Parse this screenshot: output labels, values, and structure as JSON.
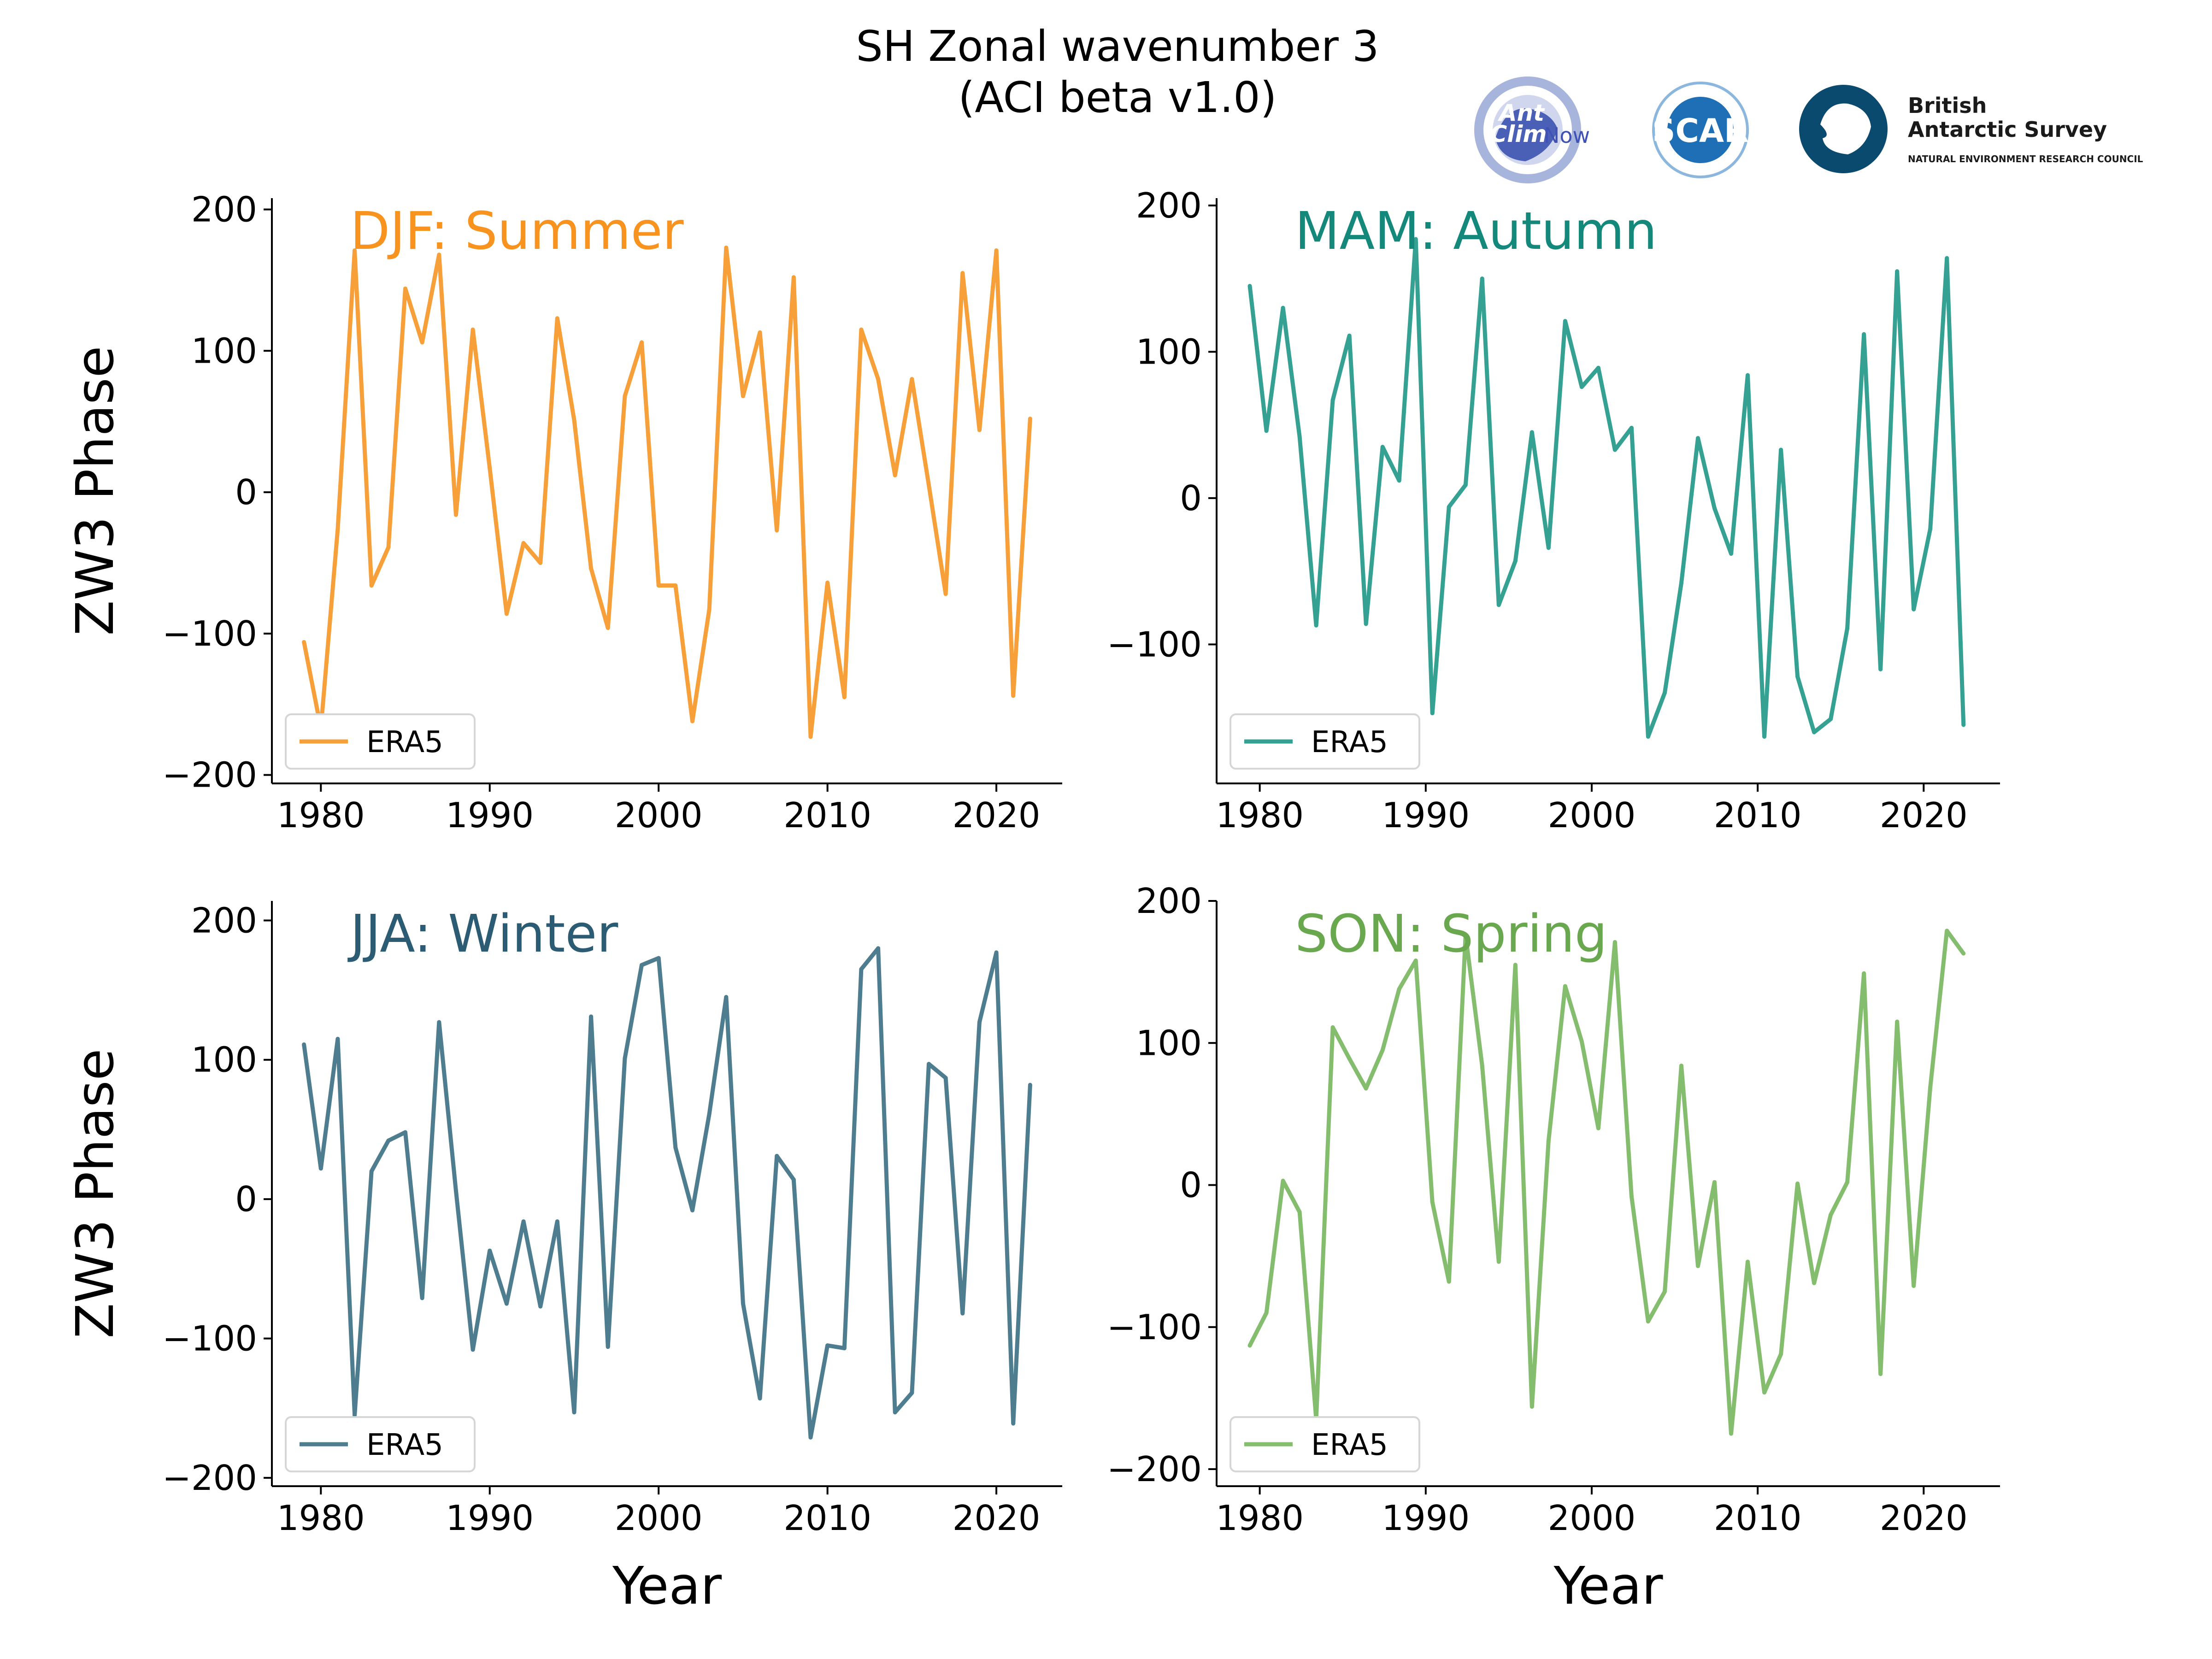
{
  "figure": {
    "title_line1": "SH Zonal wavenumber 3",
    "title_line2": "(ACI beta v1.0)",
    "logos": {
      "antclimnow": {
        "icon": "antclimnow-logo",
        "text_top": "Ant",
        "text_bottom": "Clim",
        "text_now": "Now",
        "color": "#3f51b5"
      },
      "scar": {
        "icon": "scar-logo",
        "text": "SCAR",
        "color": "#1e6fb5"
      },
      "bas": {
        "icon": "bas-antarctica-logo",
        "line1": "British",
        "line2": "Antarctic Survey",
        "line3": "NATURAL ENVIRONMENT RESEARCH COUNCIL",
        "color": "#0b4a6f"
      }
    }
  },
  "chart_data": [
    {
      "type": "line",
      "panel_title": "DJF: Summer",
      "color": "#f7a039",
      "title_color": "#f7931e",
      "ylabel": "ZW3 Phase",
      "xlabel": "",
      "legend": "ERA5",
      "legend_position": "lower-left",
      "xlim": [
        1977.1,
        2023.9
      ],
      "ylim": [
        -206,
        208
      ],
      "xticks": [
        1980,
        1990,
        2000,
        2010,
        2020
      ],
      "yticks": [
        -200,
        -100,
        0,
        100,
        200
      ],
      "ytick_labels": [
        "−200",
        "−100",
        "0",
        "100",
        "200"
      ],
      "x": [
        1979,
        1980,
        1981,
        1982,
        1983,
        1984,
        1985,
        1986,
        1987,
        1988,
        1989,
        1990,
        1991,
        1992,
        1993,
        1994,
        1995,
        1996,
        1997,
        1998,
        1999,
        2000,
        2001,
        2002,
        2003,
        2004,
        2005,
        2006,
        2007,
        2008,
        2009,
        2010,
        2011,
        2012,
        2013,
        2014,
        2015,
        2016,
        2017,
        2018,
        2019,
        2020,
        2021,
        2022
      ],
      "y": [
        -106,
        -167,
        -26,
        171,
        -66,
        -39,
        144,
        106,
        168,
        -16,
        115,
        17,
        -86,
        -36,
        -50,
        123,
        51,
        -54,
        -96,
        68,
        106,
        -66,
        -66,
        -162,
        -83,
        173,
        68,
        113,
        -27,
        152,
        -173,
        -64,
        -145,
        115,
        80,
        12,
        80,
        5,
        -72,
        155,
        44,
        171,
        -144,
        52
      ]
    },
    {
      "type": "line",
      "panel_title": "MAM: Autumn",
      "color": "#35a192",
      "title_color": "#14897b",
      "ylabel": "",
      "xlabel": "",
      "legend": "ERA5",
      "legend_position": "lower-left",
      "xlim": [
        1977.4,
        2024.6
      ],
      "ylim": [
        -195,
        205
      ],
      "xticks": [
        1980,
        1990,
        2000,
        2010,
        2020
      ],
      "yticks": [
        -100,
        0,
        100,
        200
      ],
      "ytick_labels": [
        "−100",
        "0",
        "100",
        "200"
      ],
      "x": [
        1979.4,
        1980.4,
        1981.4,
        1982.4,
        1983.4,
        1984.4,
        1985.4,
        1986.4,
        1987.4,
        1988.4,
        1989.4,
        1990.4,
        1991.4,
        1992.4,
        1993.4,
        1994.4,
        1995.4,
        1996.4,
        1997.4,
        1998.4,
        1999.4,
        2000.4,
        2001.4,
        2002.4,
        2003.4,
        2004.4,
        2005.4,
        2006.4,
        2007.4,
        2008.4,
        2009.4,
        2010.4,
        2011.4,
        2012.4,
        2013.4,
        2014.4,
        2015.4,
        2016.4,
        2017.4,
        2018.4,
        2019.4,
        2020.4,
        2021.4,
        2022.4
      ],
      "y": [
        145,
        46,
        130,
        42,
        -87,
        67,
        111,
        -86,
        35,
        12,
        177,
        -147,
        -6,
        9,
        150,
        -73,
        -43,
        45,
        -34,
        121,
        76,
        89,
        33,
        48,
        -163,
        -133,
        -58,
        41,
        -7,
        -38,
        84,
        -163,
        33,
        -122,
        -160,
        -151,
        -89,
        112,
        -117,
        155,
        -76,
        -21,
        164,
        -155
      ]
    },
    {
      "type": "line",
      "panel_title": "JJA: Winter",
      "color": "#4d7d8f",
      "title_color": "#2b5c74",
      "ylabel": "ZW3 Phase",
      "xlabel": "Year",
      "legend": "ERA5",
      "legend_position": "lower-left",
      "xlim": [
        1977.1,
        2023.9
      ],
      "ylim": [
        -206,
        214
      ],
      "xticks": [
        1980,
        1990,
        2000,
        2010,
        2020
      ],
      "yticks": [
        -200,
        -100,
        0,
        100,
        200
      ],
      "ytick_labels": [
        "−200",
        "−100",
        "0",
        "100",
        "200"
      ],
      "x": [
        1979,
        1980,
        1981,
        1982,
        1983,
        1984,
        1985,
        1986,
        1987,
        1988,
        1989,
        1990,
        1991,
        1992,
        1993,
        1994,
        1995,
        1996,
        1997,
        1998,
        1999,
        2000,
        2001,
        2002,
        2003,
        2004,
        2005,
        2006,
        2007,
        2008,
        2009,
        2010,
        2011,
        2012,
        2013,
        2014,
        2015,
        2016,
        2017,
        2018,
        2019,
        2020,
        2021,
        2022
      ],
      "y": [
        111,
        22,
        115,
        -155,
        20,
        42,
        48,
        -71,
        127,
        6,
        -108,
        -37,
        -75,
        -16,
        -77,
        -16,
        -153,
        131,
        -106,
        101,
        168,
        173,
        37,
        -8,
        61,
        145,
        -75,
        -143,
        31,
        14,
        -171,
        -105,
        -107,
        165,
        180,
        -153,
        -139,
        97,
        87,
        -82,
        127,
        177,
        -161,
        82
      ]
    },
    {
      "type": "line",
      "panel_title": "SON: Spring",
      "color": "#85bd6e",
      "title_color": "#6aa84f",
      "ylabel": "",
      "xlabel": "Year",
      "legend": "ERA5",
      "legend_position": "lower-left",
      "xlim": [
        1977.4,
        2024.6
      ],
      "ylim": [
        -212,
        200
      ],
      "xticks": [
        1980,
        1990,
        2000,
        2010,
        2020
      ],
      "yticks": [
        -200,
        -100,
        0,
        100,
        200
      ],
      "ytick_labels": [
        "−200",
        "−100",
        "0",
        "100",
        "200"
      ],
      "x": [
        1979.4,
        1980.4,
        1981.4,
        1982.4,
        1983.4,
        1984.4,
        1985.4,
        1986.4,
        1987.4,
        1988.4,
        1989.4,
        1990.4,
        1991.4,
        1992.4,
        1993.4,
        1994.4,
        1995.4,
        1996.4,
        1997.4,
        1998.4,
        1999.4,
        2000.4,
        2001.4,
        2002.4,
        2003.4,
        2004.4,
        2005.4,
        2006.4,
        2007.4,
        2008.4,
        2009.4,
        2010.4,
        2011.4,
        2012.4,
        2013.4,
        2014.4,
        2015.4,
        2016.4,
        2017.4,
        2018.4,
        2019.4,
        2020.4,
        2021.4,
        2022.4
      ],
      "y": [
        -113,
        -90,
        3,
        -19,
        -165,
        111,
        89,
        68,
        95,
        138,
        158,
        -12,
        -68,
        176,
        84,
        -54,
        155,
        -156,
        31,
        140,
        101,
        40,
        171,
        -8,
        -96,
        -75,
        84,
        -57,
        2,
        -175,
        -54,
        -146,
        -119,
        1,
        -69,
        -21,
        2,
        149,
        -133,
        115,
        -71,
        69,
        179,
        163
      ]
    }
  ]
}
